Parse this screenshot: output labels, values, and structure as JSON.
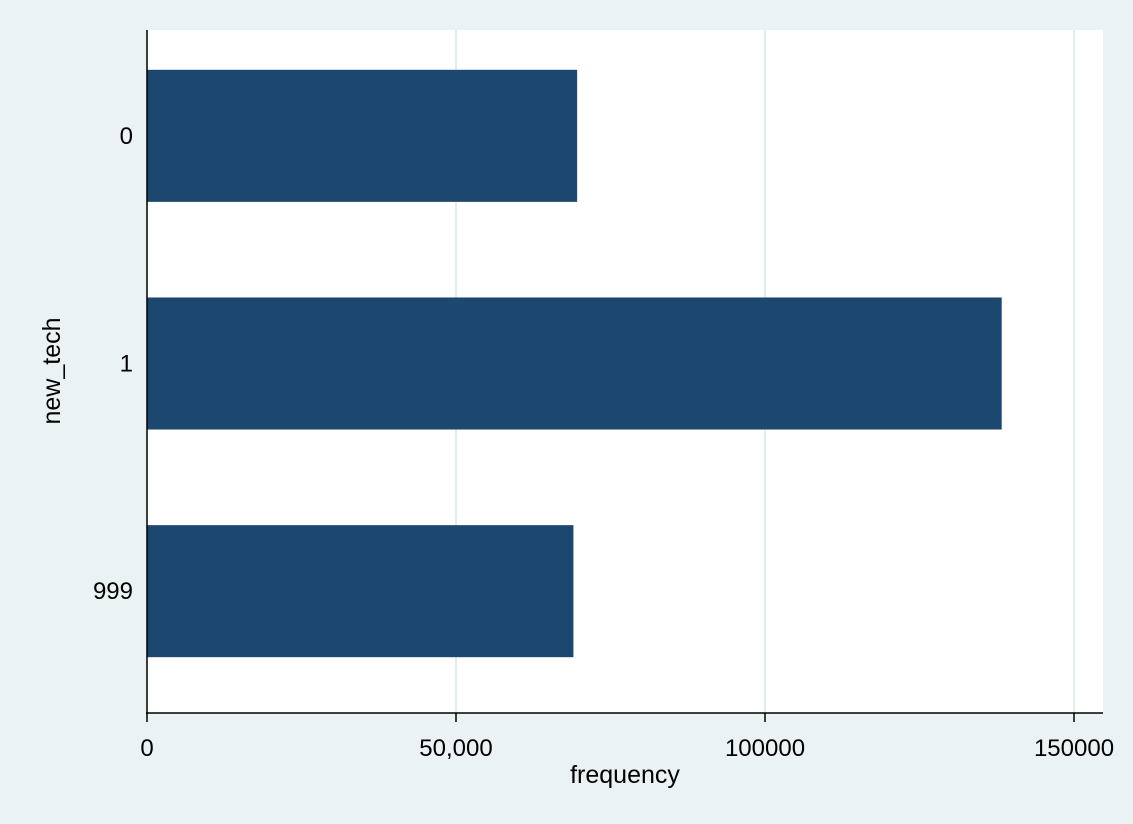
{
  "chart_data": {
    "type": "bar",
    "orientation": "horizontal",
    "categories": [
      "0",
      "1",
      "999"
    ],
    "values": [
      69600,
      138300,
      69000
    ],
    "xlabel": "frequency",
    "ylabel": "new_tech",
    "xlim": [
      0,
      150000
    ],
    "xticks": [
      {
        "value": 0,
        "label": "0"
      },
      {
        "value": 50000,
        "label": "50,000"
      },
      {
        "value": 100000,
        "label": "100000"
      },
      {
        "value": 150000,
        "label": "150000"
      }
    ],
    "grid": true,
    "legend": "none",
    "colors": {
      "bar": "#1c476e",
      "background": "#eaf2f3",
      "plot_background": "#ffffff",
      "grid": "#e3eded",
      "axis": "#000000"
    }
  }
}
